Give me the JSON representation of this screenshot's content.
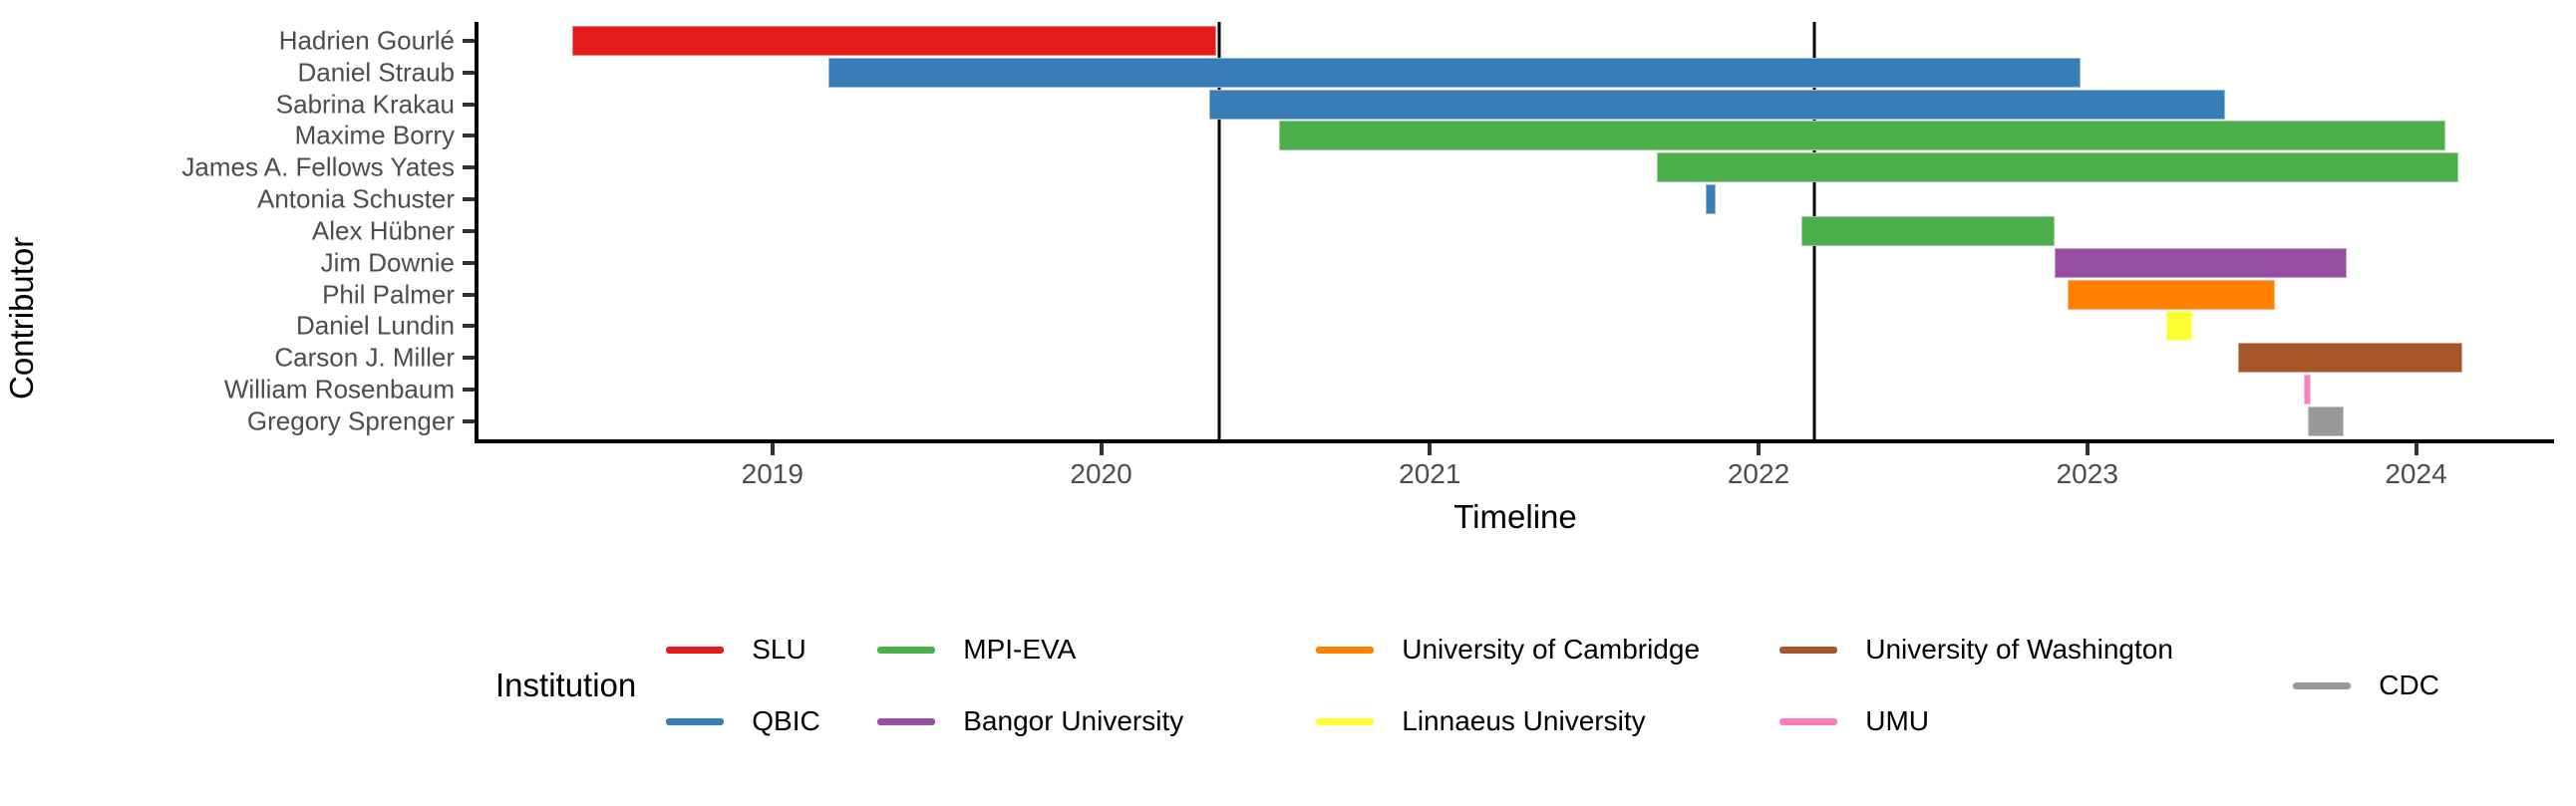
{
  "chart_data": {
    "type": "bar",
    "subtype": "horizontal-gantt-timeline",
    "title": "",
    "xlabel": "Timeline",
    "ylabel": "Contributor",
    "grid": false,
    "background": "#ffffff",
    "axis_color": "#000000",
    "tick_label_color": "#4D4D4D",
    "x_axis": {
      "min": 2018.1,
      "max": 2024.42,
      "ticks": [
        2019,
        2020,
        2021,
        2022,
        2023,
        2024
      ]
    },
    "vlines": [
      2020.36,
      2022.17
    ],
    "contributors": [
      {
        "name": "Hadrien Gourlé",
        "institution": "SLU",
        "start": 2018.39,
        "end": 2020.35
      },
      {
        "name": "Daniel Straub",
        "institution": "QBIC",
        "start": 2019.17,
        "end": 2022.98
      },
      {
        "name": "Sabrina Krakau",
        "institution": "QBIC",
        "start": 2020.33,
        "end": 2023.42
      },
      {
        "name": "Maxime Borry",
        "institution": "MPI-EVA",
        "start": 2020.54,
        "end": 2024.09
      },
      {
        "name": "James A. Fellows Yates",
        "institution": "MPI-EVA",
        "start": 2021.69,
        "end": 2024.13
      },
      {
        "name": "Antonia Schuster",
        "institution": "QBIC",
        "start": 2021.84,
        "end": 2021.87
      },
      {
        "name": "Alex Hübner",
        "institution": "MPI-EVA",
        "start": 2022.13,
        "end": 2022.9
      },
      {
        "name": "Jim Downie",
        "institution": "Bangor University",
        "start": 2022.9,
        "end": 2023.79
      },
      {
        "name": "Phil Palmer",
        "institution": "University of Cambridge",
        "start": 2022.94,
        "end": 2023.57
      },
      {
        "name": "Daniel Lundin",
        "institution": "Linnaeus University",
        "start": 2023.24,
        "end": 2023.32
      },
      {
        "name": "Carson J. Miller",
        "institution": "University of Washington",
        "start": 2023.46,
        "end": 2024.14
      },
      {
        "name": "William Rosenbaum",
        "institution": "UMU",
        "start": 2023.66,
        "end": 2023.68
      },
      {
        "name": "Gregory Sprenger",
        "institution": "CDC",
        "start": 2023.67,
        "end": 2023.78
      }
    ],
    "legend": {
      "title": "Institution",
      "position": "bottom",
      "entries": [
        {
          "label": "SLU",
          "color": "#E41A1C"
        },
        {
          "label": "QBIC",
          "color": "#377EB8"
        },
        {
          "label": "MPI-EVA",
          "color": "#4DAF4A"
        },
        {
          "label": "Bangor University",
          "color": "#984EA3"
        },
        {
          "label": "University of Cambridge",
          "color": "#FF7F00"
        },
        {
          "label": "Linnaeus University",
          "color": "#FFFF33"
        },
        {
          "label": "University of Washington",
          "color": "#A65628"
        },
        {
          "label": "UMU",
          "color": "#F781BF"
        },
        {
          "label": "CDC",
          "color": "#999999"
        }
      ]
    }
  }
}
